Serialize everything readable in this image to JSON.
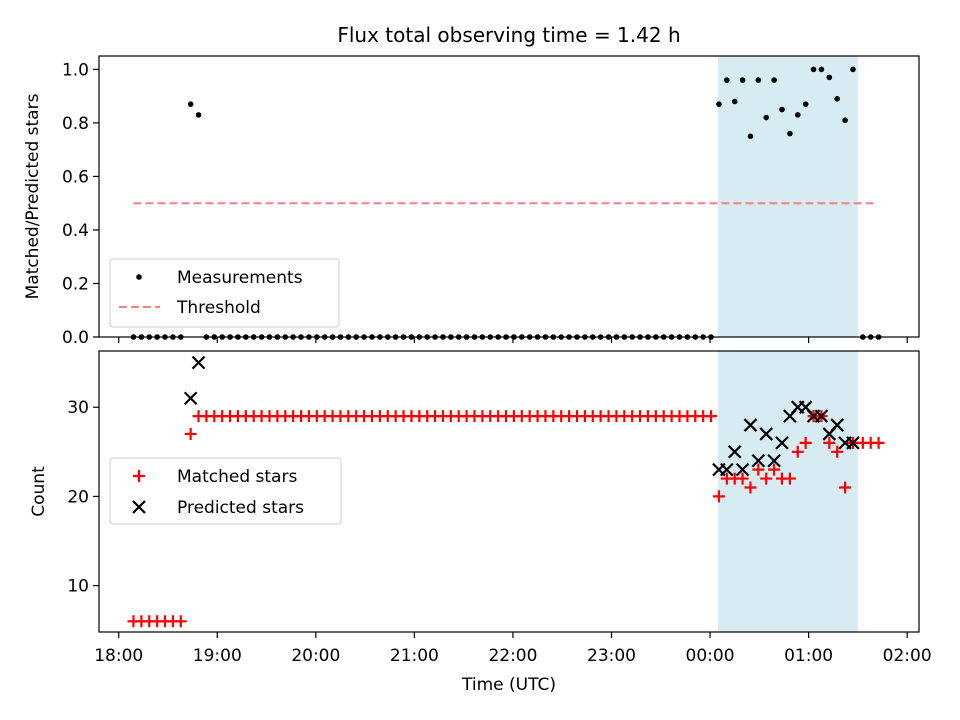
{
  "title": "Flux total observing time = 1.42 h",
  "colors": {
    "measurement": "#000000",
    "threshold": "#ff7f7f",
    "matched": "#ff0000",
    "predicted": "#000000",
    "highlight": "#add8e6"
  },
  "chart_data": [
    {
      "type": "scatter",
      "panel": "top",
      "xlabel": "",
      "ylabel": "Matched/Predicted stars",
      "x_unit": "hours after 18:00 UTC",
      "xlim": [
        17.8,
        26.12
      ],
      "ylim": [
        0,
        1.05
      ],
      "y_ticks": [
        0.0,
        0.2,
        0.4,
        0.6,
        0.8,
        1.0
      ],
      "y_tick_labels": [
        "0.0",
        "0.2",
        "0.4",
        "0.6",
        "0.8",
        "1.0"
      ],
      "highlight_span": [
        24.08,
        25.5
      ],
      "legend": {
        "position": "lower-left",
        "entries": [
          "Measurements",
          "Threshold"
        ]
      },
      "threshold": {
        "name": "Threshold",
        "value": 0.5,
        "x_range": [
          18.15,
          25.7
        ]
      },
      "series": [
        {
          "name": "Measurements",
          "x": [
            18.15,
            18.23,
            18.31,
            18.39,
            18.47,
            18.55,
            18.63,
            18.73,
            18.81,
            18.89,
            18.97,
            19.05,
            19.13,
            19.21,
            19.29,
            19.37,
            19.45,
            19.53,
            19.61,
            19.69,
            19.77,
            19.85,
            19.93,
            20.01,
            20.09,
            20.17,
            20.25,
            20.33,
            20.41,
            20.49,
            20.57,
            20.65,
            20.73,
            20.81,
            20.89,
            20.97,
            21.05,
            21.13,
            21.21,
            21.29,
            21.37,
            21.45,
            21.53,
            21.61,
            21.69,
            21.77,
            21.85,
            21.93,
            22.01,
            22.09,
            22.17,
            22.25,
            22.33,
            22.41,
            22.49,
            22.57,
            22.65,
            22.73,
            22.81,
            22.89,
            22.97,
            23.05,
            23.13,
            23.21,
            23.29,
            23.37,
            23.45,
            23.53,
            23.61,
            23.69,
            23.77,
            23.85,
            23.93,
            24.01,
            24.09,
            24.17,
            24.25,
            24.33,
            24.41,
            24.49,
            24.57,
            24.65,
            24.73,
            24.81,
            24.89,
            24.97,
            25.05,
            25.13,
            25.21,
            25.29,
            25.37,
            25.45,
            25.55,
            25.63,
            25.71
          ],
          "y": [
            0,
            0,
            0,
            0,
            0,
            0,
            0,
            0.87,
            0.83,
            0,
            0,
            0,
            0,
            0,
            0,
            0,
            0,
            0,
            0,
            0,
            0,
            0,
            0,
            0,
            0,
            0,
            0,
            0,
            0,
            0,
            0,
            0,
            0,
            0,
            0,
            0,
            0,
            0,
            0,
            0,
            0,
            0,
            0,
            0,
            0,
            0,
            0,
            0,
            0,
            0,
            0,
            0,
            0,
            0,
            0,
            0,
            0,
            0,
            0,
            0,
            0,
            0,
            0,
            0,
            0,
            0,
            0,
            0,
            0,
            0,
            0,
            0,
            0,
            0,
            0.87,
            0.96,
            0.88,
            0.96,
            0.75,
            0.96,
            0.82,
            0.96,
            0.85,
            0.76,
            0.83,
            0.87,
            1.0,
            1.0,
            0.97,
            0.89,
            0.81,
            1.0,
            0,
            0,
            0
          ]
        }
      ]
    },
    {
      "type": "scatter",
      "panel": "bottom",
      "xlabel": "Time (UTC)",
      "ylabel": "Count",
      "x_unit": "hours after 18:00 UTC",
      "xlim": [
        17.8,
        26.12
      ],
      "ylim": [
        4.8,
        36.3
      ],
      "y_ticks": [
        10,
        20,
        30
      ],
      "y_tick_labels": [
        "10",
        "20",
        "30"
      ],
      "x_ticks": [
        18,
        19,
        20,
        21,
        22,
        23,
        24,
        25,
        26
      ],
      "x_tick_labels": [
        "18:00",
        "19:00",
        "20:00",
        "21:00",
        "22:00",
        "23:00",
        "00:00",
        "01:00",
        "02:00"
      ],
      "highlight_span": [
        24.08,
        25.5
      ],
      "legend": {
        "position": "center-left",
        "entries": [
          "Matched stars",
          "Predicted stars"
        ]
      },
      "series": [
        {
          "name": "Matched stars",
          "marker": "plus",
          "x": [
            18.15,
            18.23,
            18.31,
            18.39,
            18.47,
            18.55,
            18.63,
            18.73,
            18.81,
            18.89,
            18.97,
            19.05,
            19.13,
            19.21,
            19.29,
            19.37,
            19.45,
            19.53,
            19.61,
            19.69,
            19.77,
            19.85,
            19.93,
            20.01,
            20.09,
            20.17,
            20.25,
            20.33,
            20.41,
            20.49,
            20.57,
            20.65,
            20.73,
            20.81,
            20.89,
            20.97,
            21.05,
            21.13,
            21.21,
            21.29,
            21.37,
            21.45,
            21.53,
            21.61,
            21.69,
            21.77,
            21.85,
            21.93,
            22.01,
            22.09,
            22.17,
            22.25,
            22.33,
            22.41,
            22.49,
            22.57,
            22.65,
            22.73,
            22.81,
            22.89,
            22.97,
            23.05,
            23.13,
            23.21,
            23.29,
            23.37,
            23.45,
            23.53,
            23.61,
            23.69,
            23.77,
            23.85,
            23.93,
            24.01,
            24.09,
            24.17,
            24.25,
            24.33,
            24.41,
            24.49,
            24.57,
            24.65,
            24.73,
            24.81,
            24.89,
            24.97,
            25.05,
            25.13,
            25.21,
            25.29,
            25.37,
            25.45,
            25.55,
            25.63,
            25.71
          ],
          "y": [
            6,
            6,
            6,
            6,
            6,
            6,
            6,
            27,
            29,
            29,
            29,
            29,
            29,
            29,
            29,
            29,
            29,
            29,
            29,
            29,
            29,
            29,
            29,
            29,
            29,
            29,
            29,
            29,
            29,
            29,
            29,
            29,
            29,
            29,
            29,
            29,
            29,
            29,
            29,
            29,
            29,
            29,
            29,
            29,
            29,
            29,
            29,
            29,
            29,
            29,
            29,
            29,
            29,
            29,
            29,
            29,
            29,
            29,
            29,
            29,
            29,
            29,
            29,
            29,
            29,
            29,
            29,
            29,
            29,
            29,
            29,
            29,
            29,
            29,
            20,
            22,
            22,
            22,
            21,
            23,
            22,
            23,
            22,
            22,
            25,
            26,
            29,
            29,
            26,
            25,
            21,
            26,
            26,
            26,
            26
          ]
        },
        {
          "name": "Predicted stars",
          "marker": "x",
          "x": [
            18.73,
            18.81,
            24.09,
            24.17,
            24.25,
            24.33,
            24.41,
            24.49,
            24.57,
            24.65,
            24.73,
            24.81,
            24.89,
            24.97,
            25.05,
            25.13,
            25.21,
            25.29,
            25.37,
            25.45
          ],
          "y": [
            31,
            35,
            23,
            23,
            25,
            23,
            28,
            24,
            27,
            24,
            26,
            29,
            30,
            30,
            29,
            29,
            27,
            28,
            26,
            26
          ]
        }
      ]
    }
  ]
}
